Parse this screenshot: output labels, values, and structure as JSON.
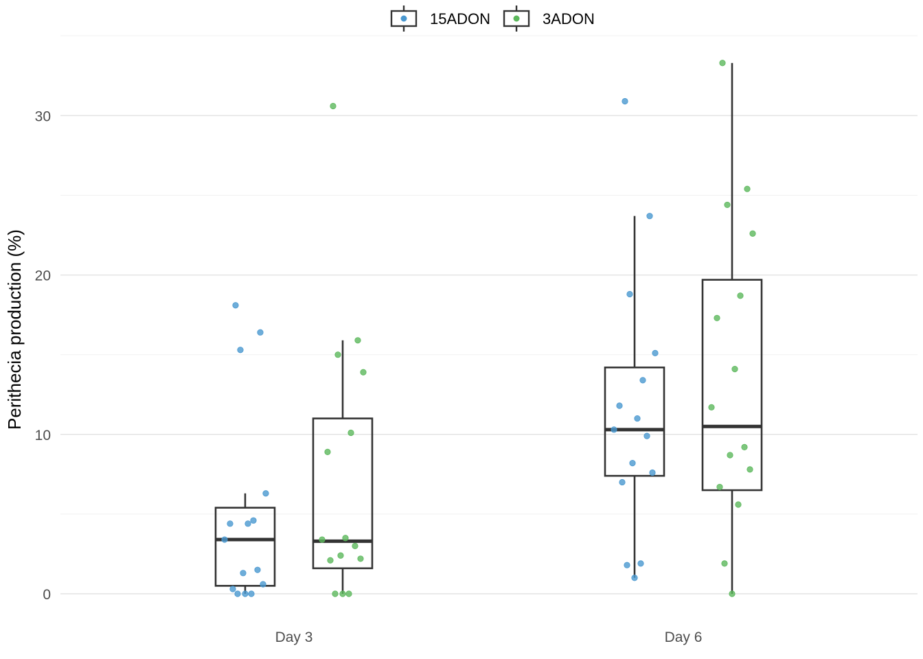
{
  "chart_data": {
    "type": "box",
    "xlabel": "",
    "ylabel": "Perithecia production (%)",
    "categories": [
      "Day 3",
      "Day 6"
    ],
    "ylim": [
      -1.5,
      35
    ],
    "y_ticks": [
      0,
      10,
      20,
      30
    ],
    "grid": "horizontal major and minor",
    "legend_position": "top",
    "series": [
      {
        "name": "15ADON",
        "color": "#4a98d0",
        "boxes": [
          {
            "category": "Day 3",
            "q1": 0.5,
            "median": 3.4,
            "q3": 5.4,
            "whisker_low": 0,
            "whisker_high": 6.3
          },
          {
            "category": "Day 6",
            "q1": 7.4,
            "median": 10.3,
            "q3": 14.2,
            "whisker_low": 1.0,
            "whisker_high": 23.7
          }
        ],
        "points": [
          {
            "category": "Day 3",
            "values": [
              18.1,
              16.4,
              15.3,
              6.3,
              4.6,
              4.4,
              4.4,
              3.4,
              1.5,
              1.3,
              0.6,
              0.3,
              0,
              0,
              0
            ]
          },
          {
            "category": "Day 6",
            "values": [
              30.9,
              23.7,
              18.8,
              15.1,
              13.4,
              11.8,
              11.0,
              10.3,
              9.9,
              8.2,
              7.6,
              7.0,
              1.9,
              1.8,
              1.0
            ]
          }
        ]
      },
      {
        "name": "3ADON",
        "color": "#5cb85c",
        "boxes": [
          {
            "category": "Day 3",
            "q1": 1.6,
            "median": 3.3,
            "q3": 11.0,
            "whisker_low": 0,
            "whisker_high": 15.9
          },
          {
            "category": "Day 6",
            "q1": 6.5,
            "median": 10.5,
            "q3": 19.7,
            "whisker_low": 0,
            "whisker_high": 33.3
          }
        ],
        "points": [
          {
            "category": "Day 3",
            "values": [
              30.6,
              15.9,
              15.0,
              13.9,
              10.1,
              8.9,
              3.5,
              3.4,
              3.0,
              2.4,
              2.2,
              2.1,
              0,
              0,
              0
            ]
          },
          {
            "category": "Day 6",
            "values": [
              33.3,
              25.4,
              24.4,
              22.6,
              18.7,
              17.3,
              14.1,
              11.7,
              9.2,
              8.7,
              7.8,
              6.7,
              5.6,
              1.9,
              0
            ]
          }
        ]
      }
    ]
  }
}
